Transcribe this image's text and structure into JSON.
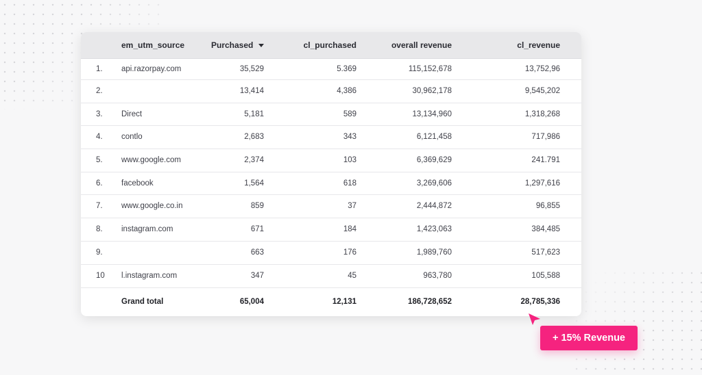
{
  "table": {
    "columns": [
      "em_utm_source",
      "Purchased",
      "cl_purchased",
      "overall revenue",
      "cl_revenue"
    ],
    "sorted_column": "Purchased",
    "sort_direction": "descending",
    "rows": [
      {
        "index": "1.",
        "source": "api.razorpay.com",
        "purchased": "35,529",
        "cl_purchased": "5.369",
        "overall_revenue": "115,152,678",
        "cl_revenue": "13,752,96"
      },
      {
        "index": "2.",
        "source": "",
        "purchased": "13,414",
        "cl_purchased": "4,386",
        "overall_revenue": "30,962,178",
        "cl_revenue": "9,545,202"
      },
      {
        "index": "3.",
        "source": "Direct",
        "purchased": "5,181",
        "cl_purchased": "589",
        "overall_revenue": "13,134,960",
        "cl_revenue": "1,318,268"
      },
      {
        "index": "4.",
        "source": "contlo",
        "purchased": "2,683",
        "cl_purchased": "343",
        "overall_revenue": "6,121,458",
        "cl_revenue": "717,986"
      },
      {
        "index": "5.",
        "source": "www.google.com",
        "purchased": "2,374",
        "cl_purchased": "103",
        "overall_revenue": "6,369,629",
        "cl_revenue": "241.791"
      },
      {
        "index": "6.",
        "source": "facebook",
        "purchased": "1,564",
        "cl_purchased": "618",
        "overall_revenue": "3,269,606",
        "cl_revenue": "1,297,616"
      },
      {
        "index": "7.",
        "source": "www.google.co.in",
        "purchased": "859",
        "cl_purchased": "37",
        "overall_revenue": "2,444,872",
        "cl_revenue": "96,855"
      },
      {
        "index": "8.",
        "source": "instagram.com",
        "purchased": "671",
        "cl_purchased": "184",
        "overall_revenue": "1,423,063",
        "cl_revenue": "384,485"
      },
      {
        "index": "9.",
        "source": "",
        "purchased": "663",
        "cl_purchased": "176",
        "overall_revenue": "1,989,760",
        "cl_revenue": "517,623"
      },
      {
        "index": "10",
        "source": "l.instagram.com",
        "purchased": "347",
        "cl_purchased": "45",
        "overall_revenue": "963,780",
        "cl_revenue": "105,588"
      }
    ],
    "total": {
      "label": "Grand total",
      "purchased": "65,004",
      "cl_purchased": "12,131",
      "overall_revenue": "186,728,652",
      "cl_revenue": "28,785,336"
    }
  },
  "badge": {
    "label": "+ 15% Revenue",
    "color": "#f5237f"
  },
  "icons": {
    "sort": "caret-down-icon",
    "cursor": "cursor-arrow-icon"
  },
  "colors": {
    "accent": "#f5237f",
    "header_bg": "#e8e8ea",
    "background": "#f7f7f8"
  }
}
